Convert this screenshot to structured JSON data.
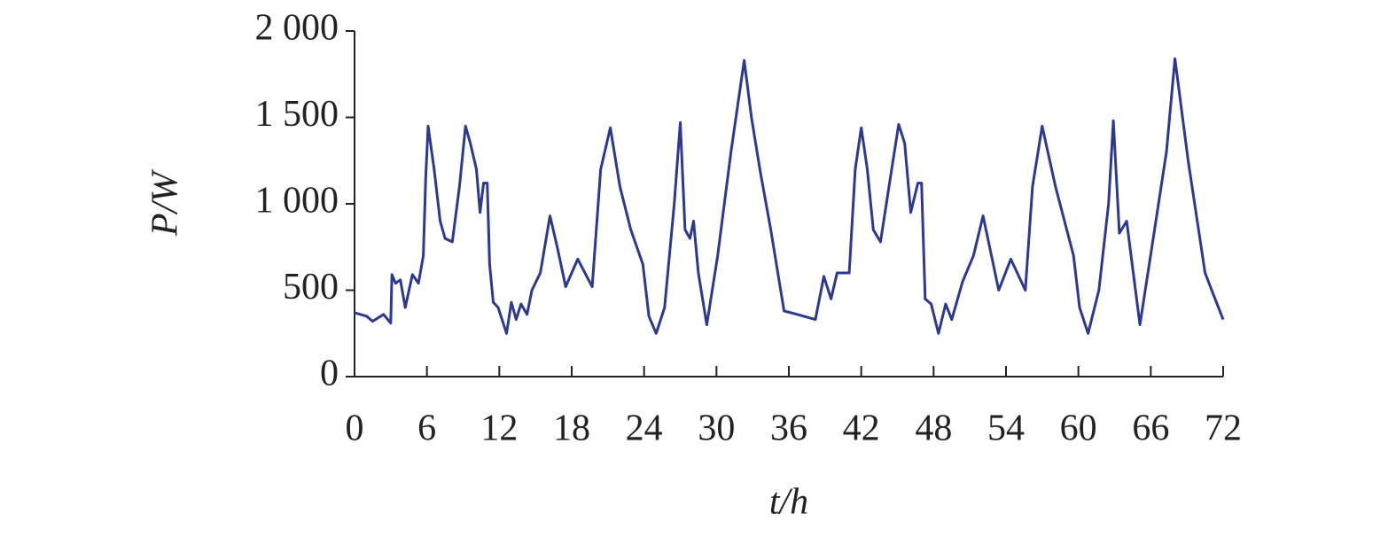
{
  "chart_data": {
    "type": "line",
    "xlabel": "t/h",
    "ylabel": "P/W",
    "xlim": [
      0,
      72
    ],
    "xticks": [
      0,
      6,
      12,
      18,
      24,
      30,
      36,
      42,
      48,
      54,
      60,
      66,
      72
    ],
    "ylim": [
      0,
      2000
    ],
    "yticks": [
      0,
      500,
      {
        "value": 1000,
        "label": "1 000"
      },
      {
        "value": 1500,
        "label": "1 500"
      },
      {
        "value": 2000,
        "label": "2 000"
      }
    ],
    "series": [
      {
        "color": "#2b3990",
        "x": [
          0,
          1,
          1.5,
          2.4,
          3,
          3.1,
          3.4,
          3.8,
          4.2,
          4.8,
          5.3,
          5.7,
          5.9,
          6.1,
          6.6,
          7.1,
          7.5,
          8.1,
          8.7,
          9.2,
          9.6,
          10.1,
          10.4,
          10.7,
          11,
          11.2,
          11.5,
          11.9,
          12.6,
          13,
          13.4,
          13.8,
          14.3,
          14.7,
          15.4,
          16.2,
          16.8,
          17.5,
          18.5,
          19.7,
          20.4,
          21.2,
          22,
          22.9,
          23.9,
          24.4,
          25,
          25.7,
          26.5,
          27,
          27.4,
          27.8,
          28.1,
          28.5,
          29.2,
          30.1,
          31.2,
          32.3,
          32.9,
          33.6,
          34.5,
          35.6,
          36.7,
          38.2,
          38.9,
          39.5,
          40,
          41,
          41.5,
          42,
          42.5,
          43,
          43.6,
          44.3,
          45.1,
          45.6,
          46.1,
          46.7,
          47,
          47.3,
          47.8,
          48.4,
          49,
          49.5,
          50.4,
          51.3,
          52.1,
          53.4,
          54.4,
          55.6,
          56.2,
          57,
          58.1,
          59.6,
          60.1,
          60.8,
          61.7,
          62.5,
          62.9,
          63.4,
          64,
          65.1,
          66.2,
          67.3,
          68,
          69.1,
          70.5,
          71.1,
          72
        ],
        "values": [
          370,
          350,
          320,
          360,
          310,
          590,
          540,
          560,
          400,
          590,
          540,
          700,
          1150,
          1450,
          1200,
          900,
          800,
          780,
          1100,
          1450,
          1350,
          1200,
          950,
          1120,
          1120,
          650,
          430,
          400,
          250,
          430,
          330,
          420,
          360,
          500,
          600,
          930,
          750,
          520,
          680,
          520,
          1200,
          1440,
          1100,
          850,
          650,
          350,
          250,
          400,
          1000,
          1470,
          850,
          800,
          900,
          600,
          300,
          700,
          1300,
          1830,
          1500,
          1200,
          850,
          380,
          360,
          330,
          580,
          450,
          600,
          600,
          1200,
          1440,
          1200,
          850,
          780,
          1100,
          1460,
          1350,
          950,
          1120,
          1120,
          450,
          420,
          250,
          420,
          330,
          550,
          700,
          930,
          500,
          680,
          500,
          1100,
          1450,
          1100,
          700,
          400,
          250,
          500,
          1000,
          1480,
          830,
          900,
          300,
          800,
          1300,
          1840,
          1250,
          600,
          490,
          330
        ]
      }
    ]
  }
}
